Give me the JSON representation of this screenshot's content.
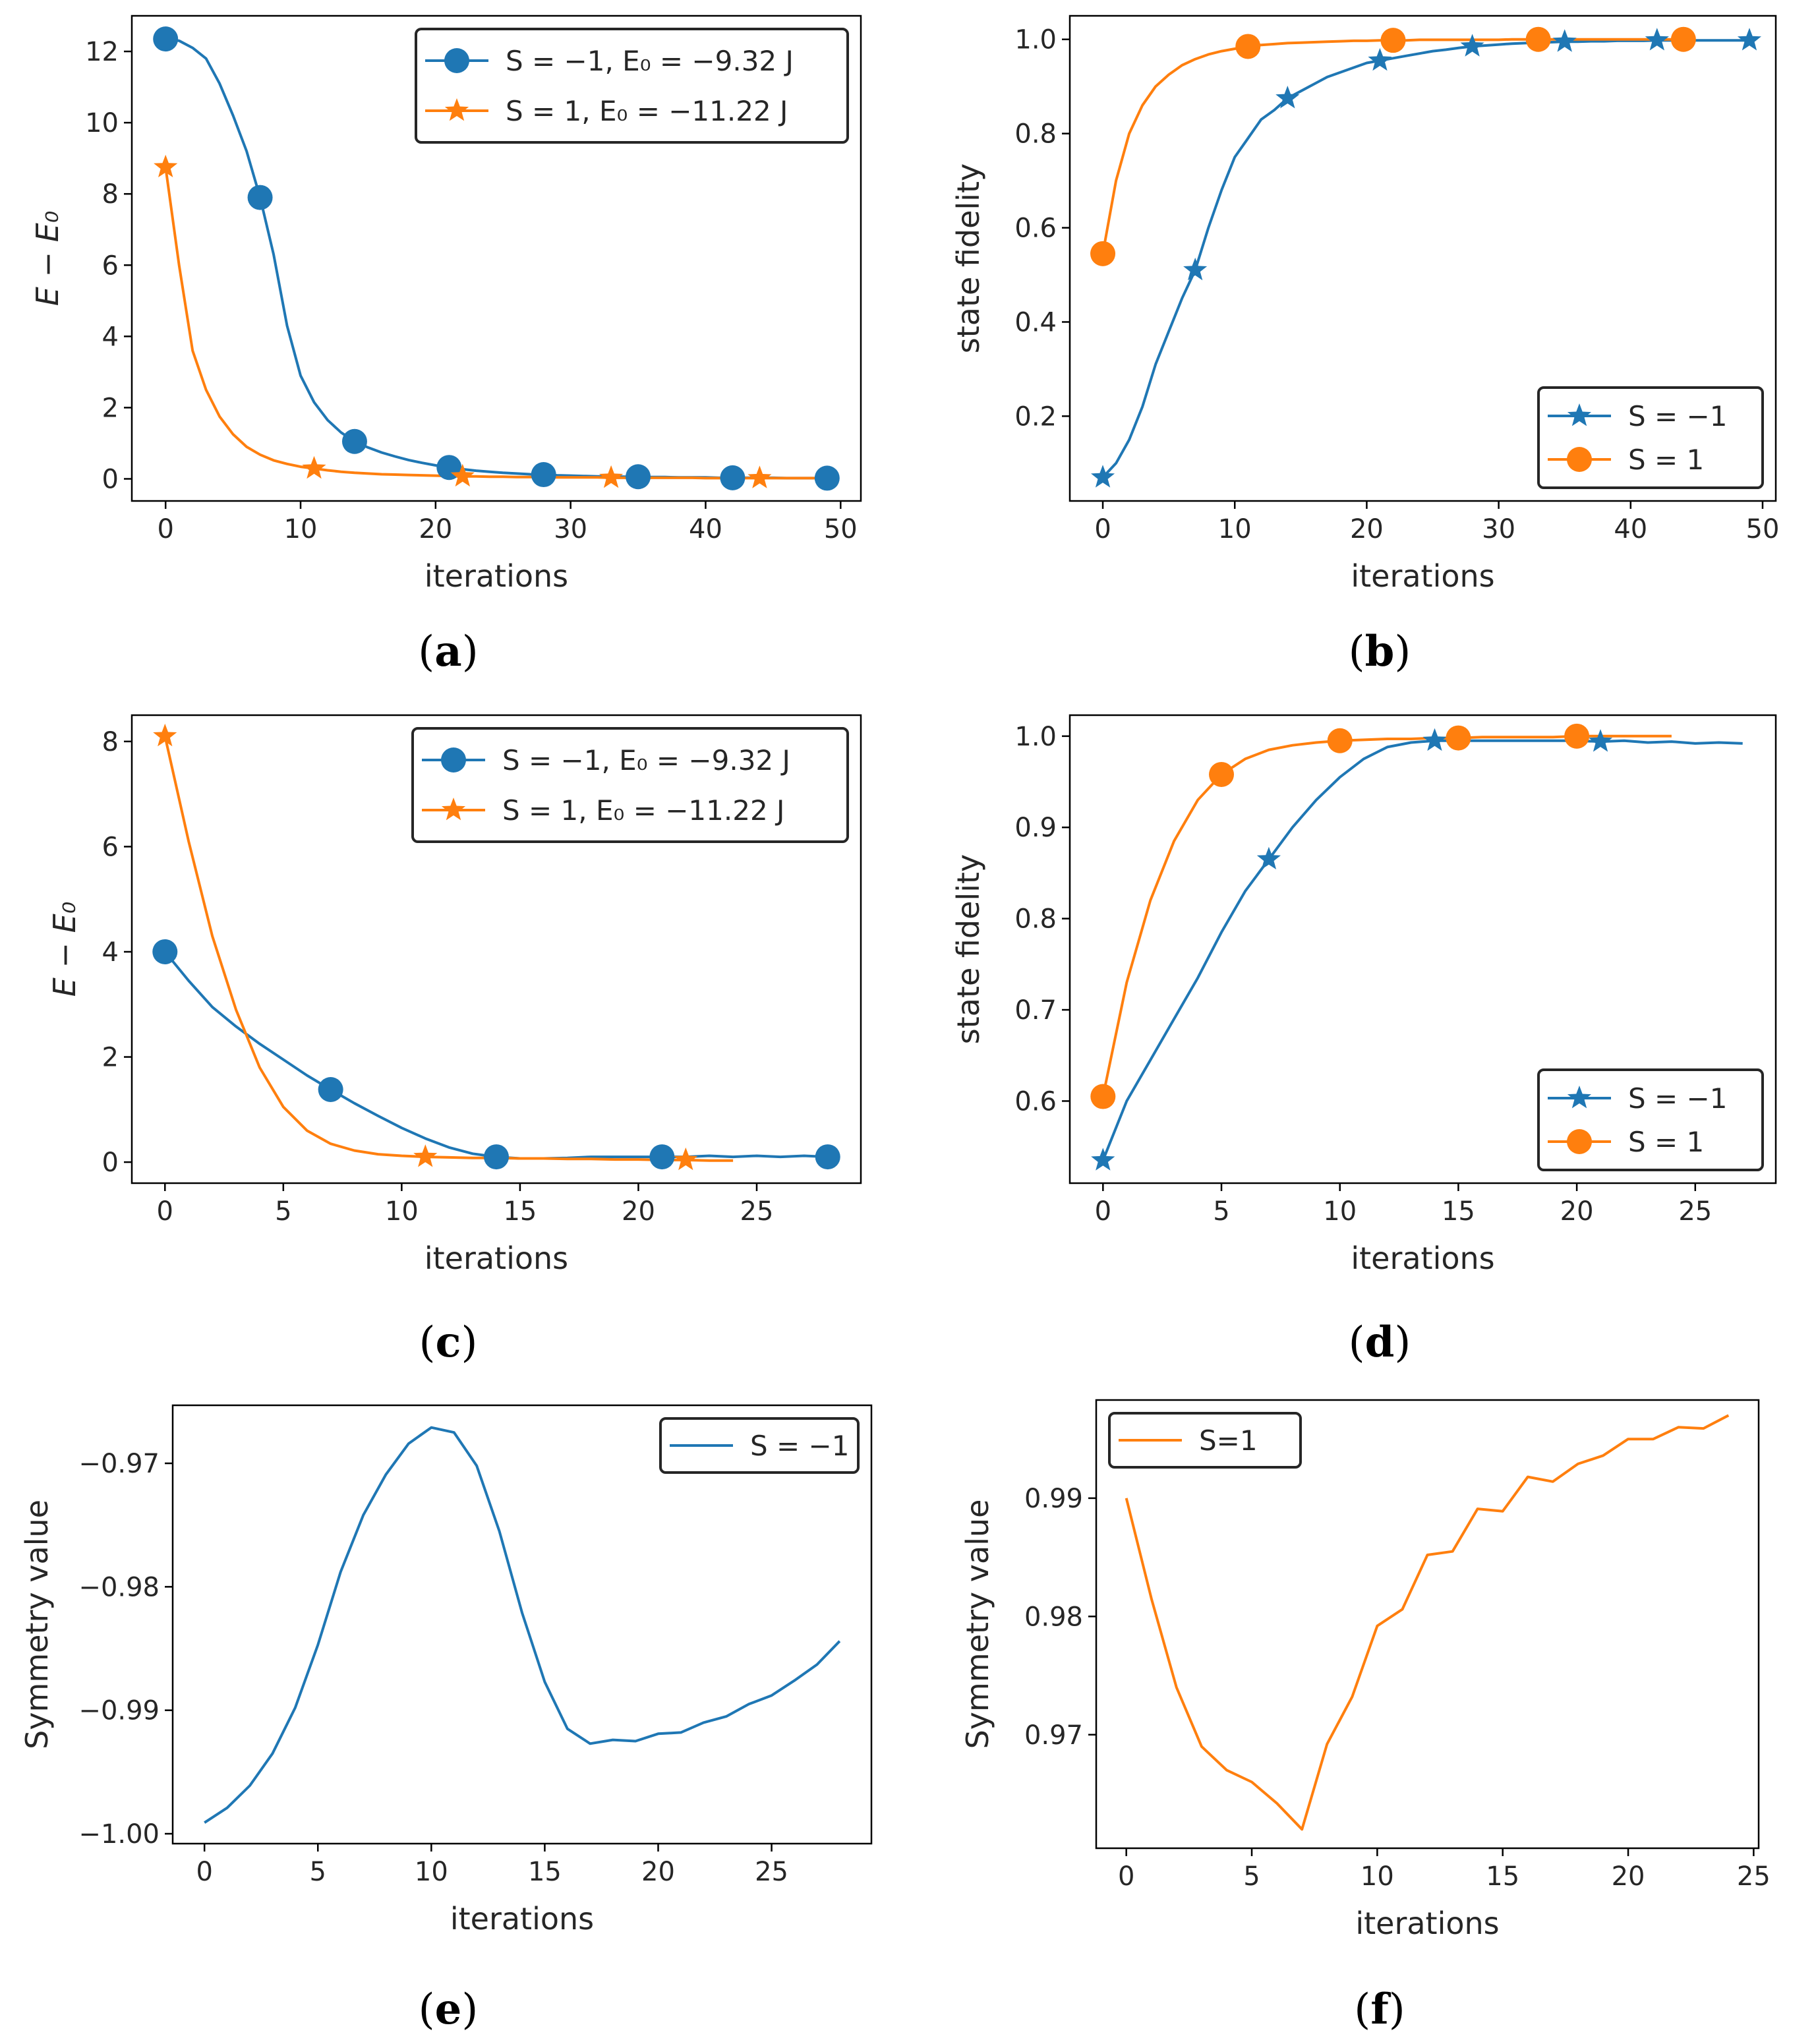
{
  "colors": {
    "blue": "#1f77b4",
    "orange": "#ff7f0e",
    "axis": "#000000",
    "text": "#262626"
  },
  "chart_data": [
    {
      "id": "a",
      "type": "line",
      "caption": "a",
      "xlabel": "iterations",
      "ylabel": "E − E₀",
      "xlim": [
        -2.5,
        51.5
      ],
      "ylim": [
        -0.62,
        13.0
      ],
      "xticks": [
        0,
        10,
        20,
        30,
        40,
        50
      ],
      "yticks": [
        0,
        2,
        4,
        6,
        8,
        10,
        12
      ],
      "xtick_labels": [
        "0",
        "10",
        "20",
        "30",
        "40",
        "50"
      ],
      "ytick_labels": [
        "0",
        "2",
        "4",
        "6",
        "8",
        "10",
        "12"
      ],
      "legend_position": "top-right",
      "series": [
        {
          "name": "S = −1, E₀ = −9.32 J",
          "color": "blue",
          "marker": "circle",
          "marker_every": 7,
          "x": [
            0,
            1,
            2,
            3,
            4,
            5,
            6,
            7,
            8,
            9,
            10,
            11,
            12,
            13,
            14,
            15,
            16,
            17,
            18,
            19,
            20,
            21,
            22,
            23,
            24,
            25,
            26,
            27,
            28,
            29,
            30,
            31,
            32,
            33,
            34,
            35,
            36,
            37,
            38,
            39,
            40,
            41,
            42,
            43,
            44,
            45,
            46,
            47,
            48,
            49
          ],
          "y": [
            12.35,
            12.3,
            12.1,
            11.8,
            11.1,
            10.2,
            9.2,
            7.9,
            6.3,
            4.3,
            2.9,
            2.15,
            1.65,
            1.3,
            1.05,
            0.88,
            0.74,
            0.63,
            0.53,
            0.45,
            0.38,
            0.32,
            0.27,
            0.23,
            0.2,
            0.17,
            0.15,
            0.13,
            0.12,
            0.1,
            0.09,
            0.08,
            0.07,
            0.07,
            0.06,
            0.06,
            0.05,
            0.05,
            0.04,
            0.04,
            0.04,
            0.03,
            0.03,
            0.03,
            0.03,
            0.03,
            0.02,
            0.02,
            0.02,
            0.02
          ]
        },
        {
          "name": "S = 1, E₀ = −11.22 J",
          "color": "orange",
          "marker": "star",
          "marker_every": 11,
          "x": [
            0,
            1,
            2,
            3,
            4,
            5,
            6,
            7,
            8,
            9,
            10,
            11,
            12,
            13,
            14,
            15,
            16,
            17,
            18,
            19,
            20,
            21,
            22,
            23,
            24,
            25,
            26,
            27,
            28,
            29,
            30,
            31,
            32,
            33,
            34,
            35,
            36,
            37,
            38,
            39,
            40,
            41,
            42,
            43,
            44,
            45,
            46,
            47,
            48,
            49
          ],
          "y": [
            8.75,
            6.0,
            3.6,
            2.5,
            1.75,
            1.25,
            0.9,
            0.68,
            0.52,
            0.42,
            0.34,
            0.29,
            0.24,
            0.2,
            0.17,
            0.15,
            0.13,
            0.12,
            0.11,
            0.1,
            0.09,
            0.08,
            0.07,
            0.07,
            0.06,
            0.06,
            0.05,
            0.05,
            0.05,
            0.04,
            0.04,
            0.04,
            0.04,
            0.03,
            0.03,
            0.03,
            0.03,
            0.03,
            0.03,
            0.03,
            0.02,
            0.02,
            0.02,
            0.02,
            0.02,
            0.02,
            0.02,
            0.02,
            0.02,
            0.02
          ]
        }
      ]
    },
    {
      "id": "b",
      "type": "line",
      "caption": "b",
      "xlabel": "iterations",
      "ylabel": "state fidelity",
      "xlim": [
        -2.5,
        51.0
      ],
      "ylim": [
        0.02,
        1.05
      ],
      "xticks": [
        0,
        10,
        20,
        30,
        40,
        50
      ],
      "yticks": [
        0.2,
        0.4,
        0.6,
        0.8,
        1.0
      ],
      "xtick_labels": [
        "0",
        "10",
        "20",
        "30",
        "40",
        "50"
      ],
      "ytick_labels": [
        "0.2",
        "0.4",
        "0.6",
        "0.8",
        "1.0"
      ],
      "legend_position": "bottom-right",
      "series": [
        {
          "name": "S = −1",
          "color": "blue",
          "marker": "star",
          "marker_every": 7,
          "x": [
            0,
            1,
            2,
            3,
            4,
            5,
            6,
            7,
            8,
            9,
            10,
            11,
            12,
            13,
            14,
            15,
            16,
            17,
            18,
            19,
            20,
            21,
            22,
            23,
            24,
            25,
            26,
            27,
            28,
            29,
            30,
            31,
            32,
            33,
            34,
            35,
            36,
            37,
            38,
            39,
            40,
            41,
            42,
            43,
            44,
            45,
            46,
            47,
            48,
            49
          ],
          "y": [
            0.07,
            0.1,
            0.15,
            0.22,
            0.31,
            0.38,
            0.45,
            0.51,
            0.6,
            0.68,
            0.75,
            0.79,
            0.83,
            0.85,
            0.875,
            0.89,
            0.905,
            0.92,
            0.93,
            0.94,
            0.95,
            0.955,
            0.96,
            0.965,
            0.97,
            0.975,
            0.978,
            0.982,
            0.985,
            0.987,
            0.989,
            0.991,
            0.992,
            0.993,
            0.994,
            0.995,
            0.995,
            0.996,
            0.996,
            0.997,
            0.997,
            0.997,
            0.998,
            0.998,
            0.998,
            0.998,
            0.998,
            0.998,
            0.998,
            0.998
          ]
        },
        {
          "name": "S = 1",
          "color": "orange",
          "marker": "circle",
          "marker_every": 11,
          "x": [
            0,
            1,
            2,
            3,
            4,
            5,
            6,
            7,
            8,
            9,
            10,
            11,
            12,
            13,
            14,
            15,
            16,
            17,
            18,
            19,
            20,
            21,
            22,
            23,
            24,
            25,
            26,
            27,
            28,
            29,
            30,
            31,
            32,
            33,
            34,
            35,
            36,
            37,
            38,
            39,
            40,
            41,
            42,
            43,
            44
          ],
          "y": [
            0.545,
            0.7,
            0.8,
            0.86,
            0.9,
            0.925,
            0.945,
            0.958,
            0.968,
            0.975,
            0.98,
            0.985,
            0.988,
            0.99,
            0.992,
            0.993,
            0.994,
            0.995,
            0.996,
            0.997,
            0.997,
            0.998,
            0.998,
            0.998,
            0.999,
            0.999,
            0.999,
            0.999,
            0.999,
            0.999,
            0.999,
            1.0,
            1.0,
            1.0,
            1.0,
            1.0,
            1.0,
            1.0,
            1.0,
            1.0,
            1.0,
            1.0,
            1.0,
            1.0,
            1.0
          ]
        }
      ]
    },
    {
      "id": "c",
      "type": "line",
      "caption": "c",
      "xlabel": "iterations",
      "ylabel": "E − E₀",
      "xlim": [
        -1.4,
        29.4
      ],
      "ylim": [
        -0.4,
        8.5
      ],
      "xticks": [
        0,
        5,
        10,
        15,
        20,
        25
      ],
      "yticks": [
        0,
        2,
        4,
        6,
        8
      ],
      "xtick_labels": [
        "0",
        "5",
        "10",
        "15",
        "20",
        "25"
      ],
      "ytick_labels": [
        "0",
        "2",
        "4",
        "6",
        "8"
      ],
      "legend_position": "top-right",
      "series": [
        {
          "name": "S = −1, E₀ = −9.32 J",
          "color": "blue",
          "marker": "circle",
          "marker_every": 7,
          "x": [
            0,
            1,
            2,
            3,
            4,
            5,
            6,
            7,
            8,
            9,
            10,
            11,
            12,
            13,
            14,
            15,
            16,
            17,
            18,
            19,
            20,
            21,
            22,
            23,
            24,
            25,
            26,
            27,
            28
          ],
          "y": [
            4.0,
            3.45,
            2.95,
            2.58,
            2.25,
            1.95,
            1.65,
            1.38,
            1.12,
            0.88,
            0.65,
            0.45,
            0.28,
            0.16,
            0.1,
            0.07,
            0.07,
            0.08,
            0.1,
            0.1,
            0.1,
            0.1,
            0.1,
            0.12,
            0.1,
            0.12,
            0.1,
            0.12,
            0.1
          ]
        },
        {
          "name": "S = 1, E₀ = −11.22 J",
          "color": "orange",
          "marker": "star",
          "marker_every": 11,
          "x": [
            0,
            1,
            2,
            3,
            4,
            5,
            6,
            7,
            8,
            9,
            10,
            11,
            12,
            13,
            14,
            15,
            16,
            17,
            18,
            19,
            20,
            21,
            22,
            23,
            24
          ],
          "y": [
            8.1,
            6.1,
            4.3,
            2.9,
            1.8,
            1.05,
            0.6,
            0.35,
            0.22,
            0.15,
            0.12,
            0.1,
            0.09,
            0.08,
            0.08,
            0.07,
            0.07,
            0.06,
            0.06,
            0.05,
            0.05,
            0.04,
            0.04,
            0.03,
            0.03
          ]
        }
      ]
    },
    {
      "id": "d",
      "type": "line",
      "caption": "d",
      "xlabel": "iterations",
      "ylabel": "state fidelity",
      "xlim": [
        -1.4,
        28.4
      ],
      "ylim": [
        0.51,
        1.023
      ],
      "xticks": [
        0,
        5,
        10,
        15,
        20,
        25
      ],
      "yticks": [
        0.6,
        0.7,
        0.8,
        0.9,
        1.0
      ],
      "xtick_labels": [
        "0",
        "5",
        "10",
        "15",
        "20",
        "25"
      ],
      "ytick_labels": [
        "0.6",
        "0.7",
        "0.8",
        "0.9",
        "1.0"
      ],
      "legend_position": "bottom-right",
      "series": [
        {
          "name": "S = −1",
          "color": "blue",
          "marker": "star",
          "marker_every": 7,
          "x": [
            0,
            1,
            2,
            3,
            4,
            5,
            6,
            7,
            8,
            9,
            10,
            11,
            12,
            13,
            14,
            15,
            16,
            17,
            18,
            19,
            20,
            21,
            22,
            23,
            24,
            25,
            26,
            27
          ],
          "y": [
            0.535,
            0.6,
            0.645,
            0.69,
            0.735,
            0.785,
            0.83,
            0.865,
            0.9,
            0.93,
            0.955,
            0.975,
            0.988,
            0.993,
            0.995,
            0.995,
            0.995,
            0.995,
            0.995,
            0.995,
            0.995,
            0.994,
            0.995,
            0.993,
            0.994,
            0.992,
            0.993,
            0.992
          ]
        },
        {
          "name": "S = 1",
          "color": "orange",
          "marker": "circle",
          "marker_every": 5,
          "x": [
            0,
            1,
            2,
            3,
            4,
            5,
            6,
            7,
            8,
            9,
            10,
            11,
            12,
            13,
            14,
            15,
            16,
            17,
            18,
            19,
            20,
            21,
            22,
            23,
            24
          ],
          "y": [
            0.605,
            0.73,
            0.82,
            0.885,
            0.93,
            0.958,
            0.975,
            0.985,
            0.99,
            0.993,
            0.995,
            0.996,
            0.997,
            0.997,
            0.998,
            0.998,
            0.999,
            0.999,
            0.999,
            0.999,
            1.0,
            1.0,
            1.0,
            1.0,
            1.0
          ]
        }
      ]
    },
    {
      "id": "e",
      "type": "line",
      "caption": "e",
      "xlabel": "iterations",
      "ylabel": "Symmetry value",
      "xlim": [
        -1.4,
        29.4
      ],
      "ylim": [
        -1.0008,
        -0.9653
      ],
      "xticks": [
        0,
        5,
        10,
        15,
        20,
        25
      ],
      "yticks": [
        -1.0,
        -0.99,
        -0.98,
        -0.97
      ],
      "xtick_labels": [
        "0",
        "5",
        "10",
        "15",
        "20",
        "25"
      ],
      "ytick_labels": [
        "−1.00",
        "−0.99",
        "−0.98",
        "−0.97"
      ],
      "legend_position": "top-right",
      "series": [
        {
          "name": "S = −1",
          "color": "blue",
          "marker": "none",
          "x": [
            0,
            1,
            2,
            3,
            4,
            5,
            6,
            7,
            8,
            9,
            10,
            11,
            12,
            13,
            14,
            15,
            16,
            17,
            18,
            19,
            20,
            21,
            22,
            23,
            24,
            25,
            26,
            27,
            28
          ],
          "y": [
            -0.9991,
            -0.9979,
            -0.9961,
            -0.9935,
            -0.9898,
            -0.9847,
            -0.9788,
            -0.9742,
            -0.9709,
            -0.9684,
            -0.9671,
            -0.9675,
            -0.9702,
            -0.9755,
            -0.9821,
            -0.9877,
            -0.9915,
            -0.9927,
            -0.9924,
            -0.9925,
            -0.9919,
            -0.9918,
            -0.991,
            -0.9905,
            -0.9895,
            -0.9888,
            -0.9876,
            -0.9863,
            -0.9844
          ]
        }
      ]
    },
    {
      "id": "f",
      "type": "line",
      "caption": "f",
      "xlabel": "iterations",
      "ylabel": "Symmetry value",
      "xlim": [
        -1.2,
        25.2
      ],
      "ylim": [
        0.9604,
        0.9983
      ],
      "xticks": [
        0,
        5,
        10,
        15,
        20,
        25
      ],
      "yticks": [
        0.97,
        0.98,
        0.99
      ],
      "xtick_labels": [
        "0",
        "5",
        "10",
        "15",
        "20",
        "25"
      ],
      "ytick_labels": [
        "0.97",
        "0.98",
        "0.99"
      ],
      "legend_position": "top-left",
      "series": [
        {
          "name": "S=1",
          "color": "orange",
          "marker": "none",
          "x": [
            0,
            1,
            2,
            3,
            4,
            5,
            6,
            7,
            8,
            9,
            10,
            11,
            12,
            13,
            14,
            15,
            16,
            17,
            18,
            19,
            20,
            21,
            22,
            23,
            24
          ],
          "y": [
            0.99,
            0.9815,
            0.974,
            0.969,
            0.967,
            0.966,
            0.9642,
            0.962,
            0.9692,
            0.9732,
            0.9792,
            0.9806,
            0.9852,
            0.9855,
            0.9891,
            0.9889,
            0.9918,
            0.9914,
            0.9929,
            0.9936,
            0.995,
            0.995,
            0.996,
            0.9959,
            0.997
          ]
        }
      ]
    }
  ]
}
